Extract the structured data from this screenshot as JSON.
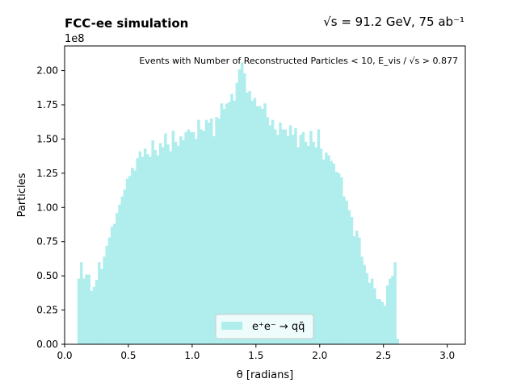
{
  "figure": {
    "title_left": "FCC-ee simulation",
    "title_right": "√s = 91.2 GeV, 75 ab⁻¹",
    "offset_label": "1e8"
  },
  "chart_data": {
    "type": "bar",
    "xlabel": "θ [radians]",
    "ylabel": "Particles",
    "xlim": [
      0.0,
      3.1416
    ],
    "ylim": [
      0.0,
      2.18
    ],
    "y_scale_factor": "1e8",
    "x_ticks": [
      "0.0",
      "0.5",
      "1.0",
      "1.5",
      "2.0",
      "2.5",
      "3.0"
    ],
    "y_ticks": [
      "0.00",
      "0.25",
      "0.50",
      "0.75",
      "1.00",
      "1.25",
      "1.50",
      "1.75",
      "2.00"
    ],
    "annotation": "Events with Number of Reconstructed Particles < 10, E_vis / √s > 0.877",
    "legend": {
      "placement": "bottom-center",
      "entries": [
        "e⁺e⁻ → qq̄"
      ]
    },
    "grid": false,
    "color": "#b0eded",
    "series": [
      {
        "name": "e⁺e⁻ → qq̄",
        "bin_width": 0.02,
        "x_start": 0.1,
        "values": [
          0.48,
          0.6,
          0.48,
          0.51,
          0.51,
          0.39,
          0.42,
          0.47,
          0.6,
          0.55,
          0.64,
          0.72,
          0.78,
          0.86,
          0.88,
          0.96,
          1.02,
          1.08,
          1.13,
          1.21,
          1.23,
          1.29,
          1.27,
          1.36,
          1.41,
          1.37,
          1.43,
          1.39,
          1.37,
          1.49,
          1.42,
          1.38,
          1.47,
          1.44,
          1.54,
          1.46,
          1.41,
          1.56,
          1.48,
          1.45,
          1.52,
          1.49,
          1.55,
          1.57,
          1.55,
          1.55,
          1.5,
          1.64,
          1.57,
          1.56,
          1.64,
          1.62,
          1.65,
          1.52,
          1.66,
          1.65,
          1.76,
          1.72,
          1.76,
          1.77,
          1.83,
          1.78,
          1.91,
          2.01,
          2.06,
          1.98,
          1.84,
          1.85,
          1.78,
          1.8,
          1.74,
          1.74,
          1.72,
          1.76,
          1.66,
          1.6,
          1.64,
          1.57,
          1.53,
          1.62,
          1.57,
          1.57,
          1.52,
          1.6,
          1.53,
          1.58,
          1.44,
          1.53,
          1.55,
          1.48,
          1.45,
          1.56,
          1.48,
          1.44,
          1.57,
          1.43,
          1.35,
          1.4,
          1.38,
          1.34,
          1.32,
          1.26,
          1.25,
          1.22,
          1.08,
          1.05,
          0.98,
          0.93,
          0.79,
          0.83,
          0.78,
          0.64,
          0.58,
          0.52,
          0.45,
          0.48,
          0.41,
          0.33,
          0.33,
          0.31,
          0.28,
          0.43,
          0.48,
          0.5,
          0.6,
          0.04
        ]
      }
    ]
  }
}
